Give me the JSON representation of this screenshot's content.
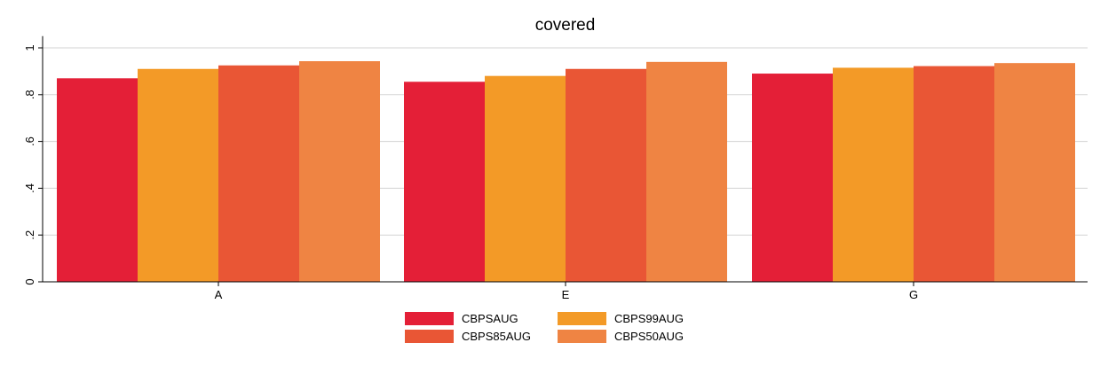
{
  "chart_data": {
    "type": "bar",
    "title": "covered",
    "xlabel": "",
    "ylabel": "",
    "categories": [
      "A",
      "E",
      "G"
    ],
    "ylim": [
      0,
      1.05
    ],
    "yticks": [
      0,
      0.2,
      0.4,
      0.6,
      0.8,
      1
    ],
    "ytick_labels": [
      "0",
      ".2",
      ".4",
      ".6",
      ".8",
      "1"
    ],
    "grid": true,
    "legend_position": "bottom",
    "series": [
      {
        "name": "CBPSAUG",
        "color": "#e41f37",
        "values": [
          0.87,
          0.855,
          0.89
        ]
      },
      {
        "name": "CBPS99AUG",
        "color": "#f39a27",
        "values": [
          0.91,
          0.88,
          0.915
        ]
      },
      {
        "name": "CBPS85AUG",
        "color": "#e95635",
        "values": [
          0.925,
          0.91,
          0.922
        ]
      },
      {
        "name": "CBPS50AUG",
        "color": "#ef8443",
        "values": [
          0.943,
          0.94,
          0.935
        ]
      }
    ]
  }
}
